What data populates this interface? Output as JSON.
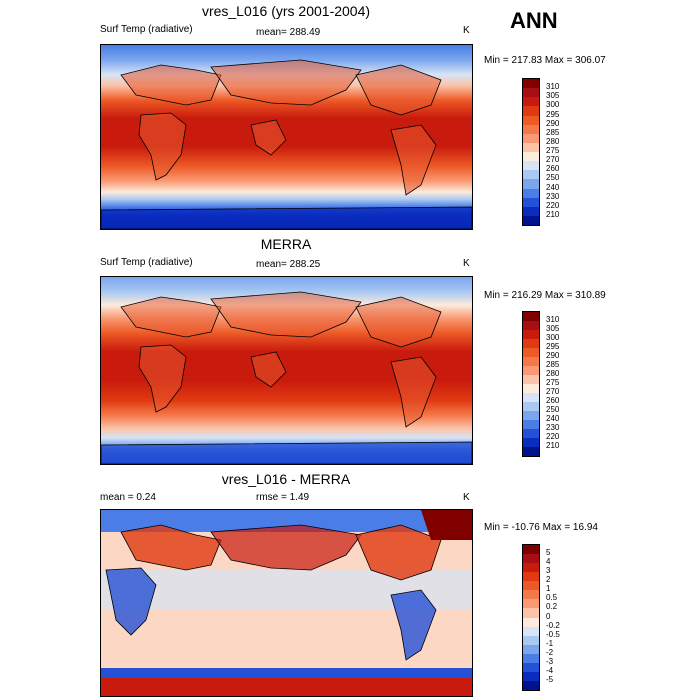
{
  "header": {
    "season": "ANN"
  },
  "panels": [
    {
      "id": "model",
      "title": "vres_L016 (yrs 2001-2004)",
      "left_label": "Surf Temp (radiative)",
      "center_label": "mean= 288.49",
      "units": "K",
      "minmax": "Min = 217.83 Max = 306.07",
      "colorbar": {
        "labels": [
          "310",
          "305",
          "300",
          "295",
          "290",
          "285",
          "280",
          "275",
          "270",
          "260",
          "250",
          "240",
          "230",
          "220",
          "210"
        ],
        "colors": [
          "#800000",
          "#a50f15",
          "#c81a0d",
          "#e03a12",
          "#ee5a26",
          "#f5784a",
          "#f99a74",
          "#fcc3a8",
          "#fdebdc",
          "#d6e4f6",
          "#a9c8f2",
          "#7aa6ee",
          "#4a7ee6",
          "#2551d6",
          "#0a2cbf",
          "#00138c"
        ]
      }
    },
    {
      "id": "obs",
      "title": "MERRA",
      "left_label": "Surf Temp (radiative)",
      "center_label": "mean= 288.25",
      "units": "K",
      "minmax": "Min = 216.29 Max = 310.89",
      "colorbar": {
        "labels": [
          "310",
          "305",
          "300",
          "295",
          "290",
          "285",
          "280",
          "275",
          "270",
          "260",
          "250",
          "240",
          "230",
          "220",
          "210"
        ],
        "colors": [
          "#800000",
          "#a50f15",
          "#c81a0d",
          "#e03a12",
          "#ee5a26",
          "#f5784a",
          "#f99a74",
          "#fcc3a8",
          "#fdebdc",
          "#d6e4f6",
          "#a9c8f2",
          "#7aa6ee",
          "#4a7ee6",
          "#2551d6",
          "#0a2cbf",
          "#00138c"
        ]
      }
    },
    {
      "id": "diff",
      "title": "vres_L016 - MERRA",
      "left_label": "mean =   0.24",
      "center_label": "rmse =   1.49",
      "units": "K",
      "minmax": "Min = -10.76 Max =  16.94",
      "colorbar": {
        "labels": [
          "5",
          "4",
          "3",
          "2",
          "1",
          "0.5",
          "0.2",
          "0",
          "-0.2",
          "-0.5",
          "-1",
          "-2",
          "-3",
          "-4",
          "-5"
        ],
        "colors": [
          "#800000",
          "#a50f15",
          "#c81a0d",
          "#e03a12",
          "#ee5a26",
          "#f5784a",
          "#f99a74",
          "#fcc3a8",
          "#fdebdc",
          "#d6e4f6",
          "#a9c8f2",
          "#7aa6ee",
          "#4a7ee6",
          "#2551d6",
          "#0a2cbf",
          "#00138c"
        ]
      }
    }
  ]
}
